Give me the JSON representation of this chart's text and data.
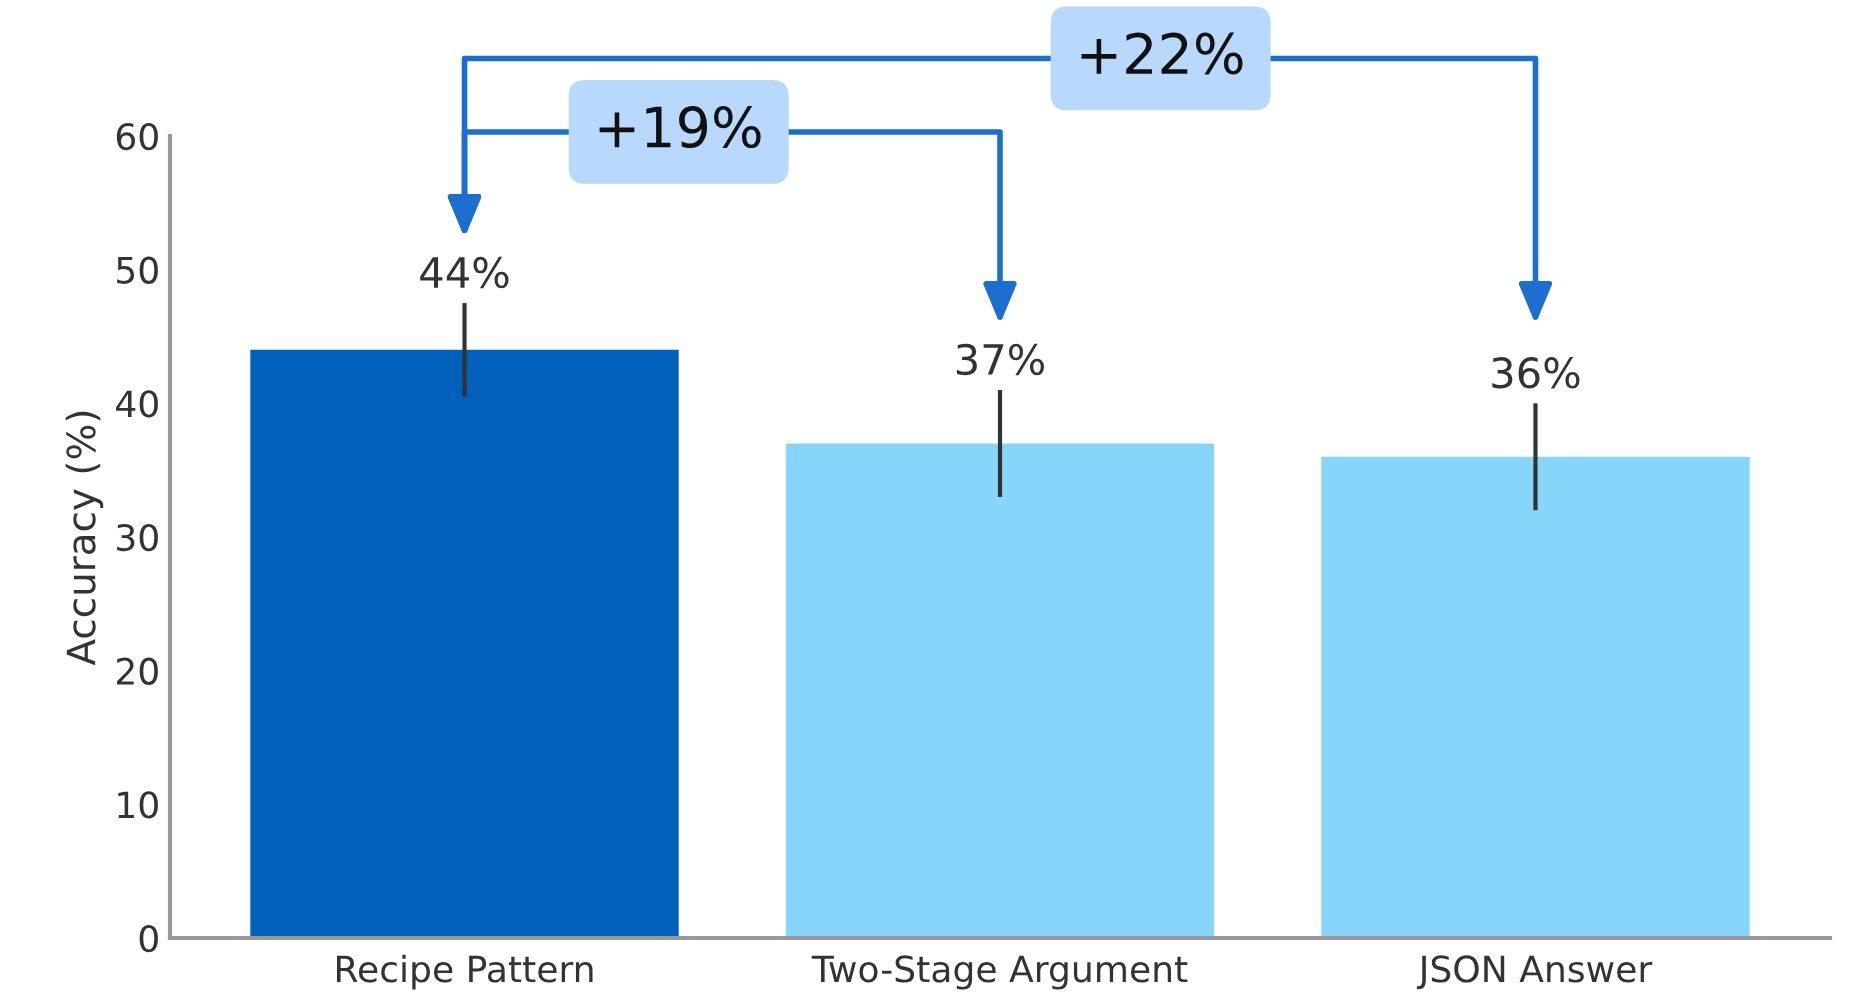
{
  "chart_data": {
    "type": "bar",
    "ylabel": "Accuracy (%)",
    "categories": [
      "Recipe Pattern",
      "Two-Stage Argument",
      "JSON Answer"
    ],
    "values": [
      44,
      37,
      36
    ],
    "colors": [
      "#0060bb",
      "#87d5f8",
      "#87d5f8"
    ],
    "errors": [
      3.5,
      4,
      4
    ],
    "value_labels": [
      "44%",
      "37%",
      "36%"
    ],
    "ylim": [
      0,
      60
    ],
    "yticks": [
      0,
      10,
      20,
      30,
      40,
      50,
      60
    ],
    "annotations": [
      "+19%",
      "+22%"
    ]
  }
}
